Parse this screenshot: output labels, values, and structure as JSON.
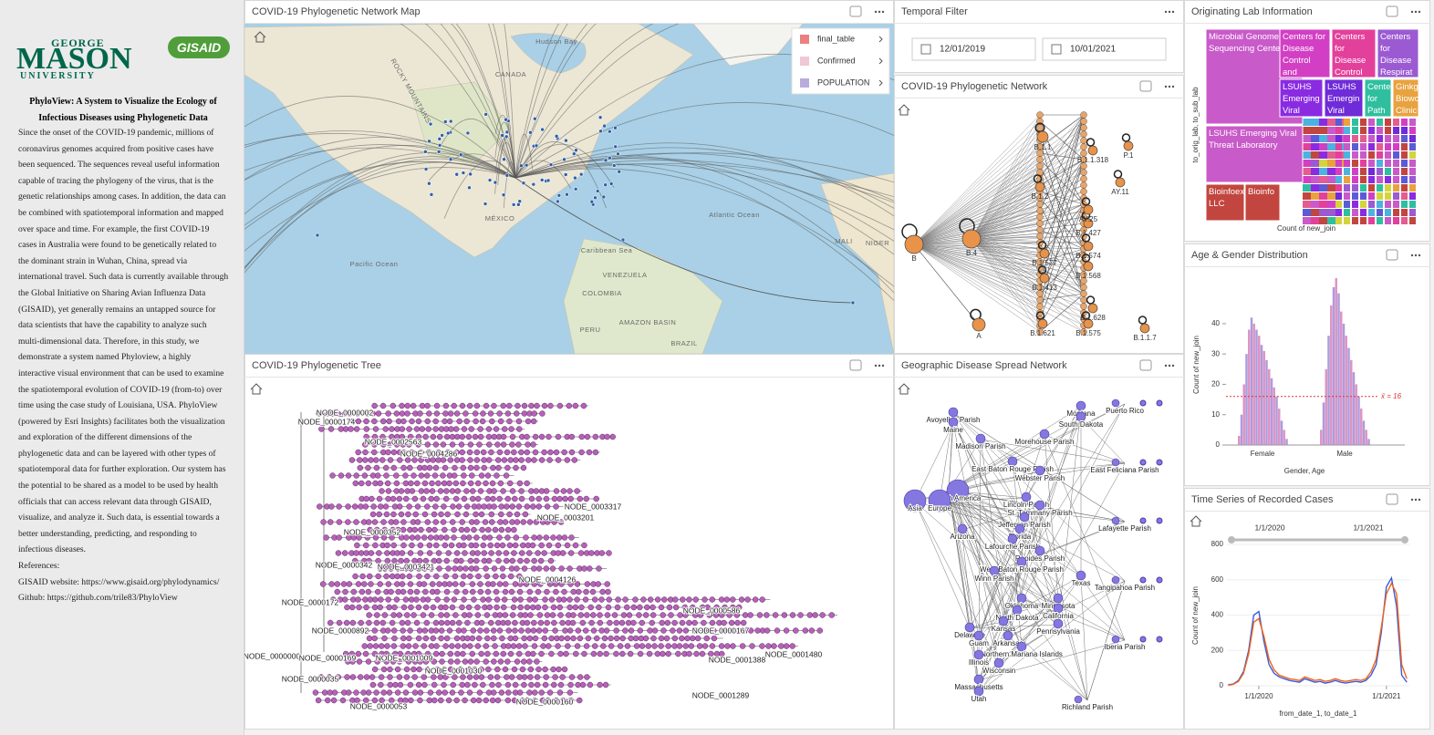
{
  "sidebar": {
    "logo": [
      "GEORGE",
      "MASON",
      "UNIVERSITY"
    ],
    "partner": "GISAID",
    "title": "PhyloView: A System to Visualize the Ecology of Infectious Diseases using Phylogenetic Data",
    "body": "Since the onset of the COVID-19 pandemic, millions of coronavirus genomes acquired from positive cases have been sequenced. The sequences reveal useful information capable of tracing the phylogeny of the virus, that is the genetic relationships among cases. In addition, the data can be combined with spatiotemporal information and mapped over space and time. For example, the first COVID-19 cases in Australia were found to be genetically related to the dominant strain in Wuhan, China, spread via international travel. Such data is currently available through the Global Initiative on Sharing Avian Influenza Data (GISAID), yet generally remains an untapped source for data scientists that have the capability to analyze such multi-dimensional data. Therefore, in this study, we demonstrate a system named Phyloview, a highly interactive visual environment that can be used to examine the spatiotemporal evolution of COVID-19 (from-to) over time using the case study of Louisiana, USA. PhyloView (powered by Esri Insights) facilitates both the visualization and exploration of the different dimensions of the phylogenetic data and can be layered with other types of spatiotemporal data for further exploration. Our system has the potential to be shared as a model to be used by health officials that can access relevant data through GISAID, visualize, and analyze it. Such data, is essential towards a better understanding, predicting, and responding to infectious diseases.",
    "references_label": "References:",
    "references": [
      "GISAID website: https://www.gisaid.org/phylodynamics/",
      "Github: https://github.com/trile83/PhyloView"
    ]
  },
  "map": {
    "title": "COVID-19 Phylogenetic Network Map",
    "layers": [
      "final_table",
      "Confirmed",
      "POPULATION"
    ],
    "labels": [
      "CANADA",
      "MÉXICO",
      "Atlantic Ocean",
      "Pacific Ocean",
      "VENEZUELA",
      "COLOMBIA",
      "PERU",
      "AMAZON BASIN",
      "BRAZIL",
      "MALI",
      "NIGER",
      "ROCKY MOUNTAINS",
      "Hudson Bay",
      "Caribbean Sea"
    ]
  },
  "temporal_filter": {
    "title": "Temporal Filter",
    "start": "12/01/2019",
    "end": "10/01/2021"
  },
  "network": {
    "title": "COVID-19 Phylogenetic Network",
    "nodes": [
      "B",
      "B.4",
      "A",
      "B.1.1",
      "P.1",
      "B.1.574",
      "B.1.568",
      "B.1.575",
      "B.1.1.7",
      "AY.11",
      "B.1.2",
      "B.1.427",
      "B.1.628",
      "B.1.621",
      "B.1.577",
      "B.1.413",
      "B.1.1.318",
      "AY.25"
    ]
  },
  "tree": {
    "title": "COVID-19 Phylogenetic Tree",
    "nodes": [
      "NODE_0000002",
      "NODE_0000174",
      "NODE_0002563",
      "NODE_0004286",
      "NODE_0000352",
      "NODE_0000342",
      "NODE_0003421",
      "NODE_0000172",
      "NODE_0000892",
      "NODE_0000000",
      "NODE_0000169",
      "NODE_0000035",
      "NODE_0000053",
      "NODE_0000160",
      "NODE_0001009",
      "NODE_0001030",
      "NODE_0001289",
      "NODE_0001388",
      "NODE_0001480",
      "NODE_0004126",
      "NODE_0003201",
      "NODE_0003317",
      "NODE_0000586",
      "NODE_0000167"
    ]
  },
  "geo": {
    "title": "Geographic Disease Spread Network",
    "nodes": [
      "Avoyelles Parish",
      "Maine",
      "Madison Parish",
      "Montana",
      "South Dakota",
      "Puerto Rico",
      "East Feliciana Parish",
      "Lafayette Parish",
      "Tangipahoa Parish",
      "Iberia Parish",
      "Richland Parish",
      "North America",
      "Asia",
      "Europe",
      "East Baton Rouge Parish",
      "Webster Parish",
      "Lincoln Parish",
      "St. Tammany Parish",
      "Jefferson Parish",
      "Florida",
      "Arizona",
      "Lafourche Parish",
      "Rapides Parish",
      "West Baton Rouge Parish",
      "Winn Parish",
      "Texas",
      "Oklahoma",
      "Minnesota",
      "North Dakota",
      "California",
      "Kansas",
      "Pennsylvania",
      "Delaware",
      "Arkansas",
      "Guam",
      "Northern Mariana Islands",
      "Illinois",
      "Wisconsin",
      "Massachusetts",
      "Utah",
      "Morehouse Parish"
    ]
  },
  "lab": {
    "title": "Originating Lab Information",
    "y_label": "to_orig_lab, to_sub_lab",
    "x_label": "Count of new_join",
    "cells": [
      {
        "label": "Microbial Genome Sequencing Center",
        "color": "#c95ac9"
      },
      {
        "label": "LSUHS Emerging Viral Threat Laboratory",
        "color": "#c95ac9"
      },
      {
        "label": "Bioinfoex LLC",
        "color": "#c2463f"
      },
      {
        "label": "Bioinfo",
        "color": "#c2463f"
      },
      {
        "label": "Centers for Disease Control and Prevention",
        "color": "#d23fc4"
      },
      {
        "label": "Centers for Disease Control",
        "color": "#e3409b"
      },
      {
        "label": "Centers for Disease Respirat",
        "color": "#9b5ad2"
      },
      {
        "label": "LSUHS Emerging Viral",
        "color": "#8a2be2"
      },
      {
        "label": "LSUHS Emergin Viral",
        "color": "#6f2bd8"
      },
      {
        "label": "Center for Path",
        "color": "#2fbf9f"
      },
      {
        "label": "Ginkgo Bioworks Clinic",
        "color": "#e8a23e"
      }
    ]
  },
  "age_gender": {
    "title": "Age & Gender Distribution",
    "y_label": "Count of new_join",
    "x_label": "Gender, Age",
    "categories": [
      "Female",
      "Male"
    ],
    "ylim": [
      0,
      55
    ],
    "yticks": [
      0,
      10,
      20,
      30,
      40
    ],
    "colors": [
      "#d882b8",
      "#a08ad8"
    ],
    "mean": 16,
    "mean_label": "x̄ = 16",
    "female": [
      3,
      10,
      20,
      30,
      38,
      42,
      40,
      38,
      36,
      33,
      31,
      28,
      25,
      22,
      19,
      16,
      12,
      8,
      5,
      2
    ],
    "male": [
      5,
      14,
      25,
      36,
      46,
      52,
      55,
      50,
      44,
      40,
      36,
      32,
      28,
      24,
      20,
      16,
      12,
      8,
      5,
      2
    ]
  },
  "time_series": {
    "title": "Time Series of Recorded Cases",
    "slider_ticks": [
      "1/1/2020",
      "1/1/2021"
    ],
    "y_label": "Count of new_join",
    "x_label": "from_date_1, to_date_1",
    "xlim": [
      2019.75,
      2021.18
    ],
    "xticks": [
      {
        "value": 2020,
        "label": "1/1/2020"
      },
      {
        "value": 2021,
        "label": "1/1/2021"
      }
    ],
    "ylim": [
      0,
      800
    ],
    "yticks": [
      0,
      200,
      400,
      600,
      800
    ],
    "x": [
      2019.76,
      2019.8,
      2019.84,
      2019.88,
      2019.92,
      2019.96,
      2020.0,
      2020.04,
      2020.08,
      2020.12,
      2020.16,
      2020.2,
      2020.24,
      2020.28,
      2020.32,
      2020.36,
      2020.4,
      2020.44,
      2020.48,
      2020.52,
      2020.56,
      2020.6,
      2020.64,
      2020.68,
      2020.72,
      2020.76,
      2020.8,
      2020.84,
      2020.88,
      2020.92,
      2020.96,
      2021.0,
      2021.04,
      2021.08,
      2021.12,
      2021.16
    ],
    "series": [
      {
        "color": "#3b5bdb",
        "values": [
          5,
          10,
          30,
          80,
          200,
          400,
          420,
          250,
          120,
          70,
          50,
          40,
          30,
          25,
          20,
          40,
          30,
          20,
          25,
          15,
          20,
          30,
          20,
          15,
          20,
          25,
          20,
          30,
          60,
          120,
          300,
          560,
          610,
          450,
          60,
          20
        ]
      },
      {
        "color": "#f0641c",
        "values": [
          3,
          8,
          25,
          70,
          180,
          360,
          380,
          280,
          150,
          90,
          60,
          50,
          40,
          35,
          30,
          50,
          40,
          30,
          35,
          25,
          30,
          40,
          30,
          25,
          30,
          35,
          30,
          40,
          80,
          150,
          330,
          520,
          580,
          520,
          120,
          40
        ]
      }
    ]
  }
}
